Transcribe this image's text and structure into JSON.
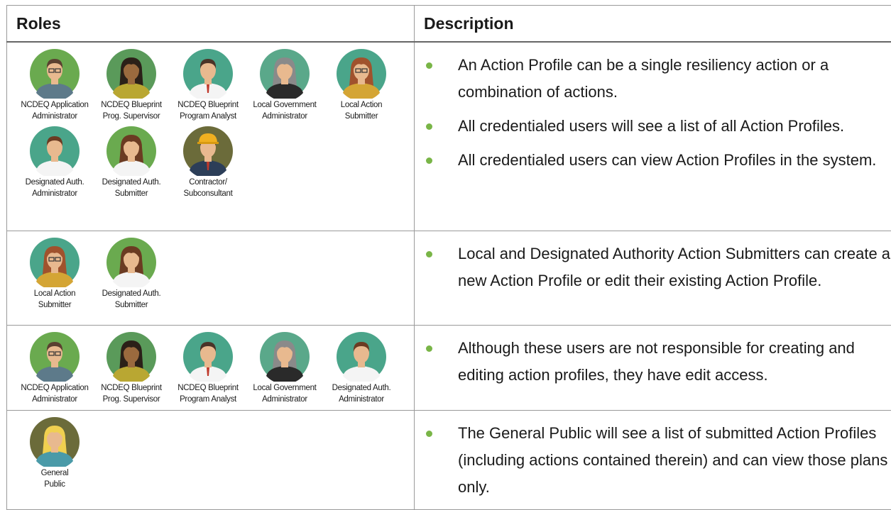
{
  "table": {
    "headers": [
      "Roles",
      "Description"
    ],
    "rows": [
      {
        "roles": [
          [
            "NCDEQ Application",
            "Administrator"
          ],
          [
            "NCDEQ Blueprint",
            "Prog. Supervisor"
          ],
          [
            "NCDEQ Blueprint",
            "Program Analyst"
          ],
          [
            "Local Government",
            "Administrator"
          ],
          [
            "Local Action",
            "Submitter"
          ],
          [
            "Designated Auth.",
            "Administrator"
          ],
          [
            "Designated Auth.",
            "Submitter"
          ],
          [
            "Contractor/",
            "Subconsultant"
          ]
        ],
        "description": [
          "An Action Profile can be a single resiliency action or a combination of actions.",
          "All credentialed users will see a list of all Action Profiles.",
          "All credentialed users can view Action Profiles in the system."
        ]
      },
      {
        "roles": [
          [
            "Local Action",
            "Submitter"
          ],
          [
            "Designated Auth.",
            "Submitter"
          ]
        ],
        "description": [
          "Local and Designated Authority Action Submitters can create a new Action Profile or edit their existing Action Profile."
        ]
      },
      {
        "roles": [
          [
            "NCDEQ Application",
            "Administrator"
          ],
          [
            "NCDEQ Blueprint",
            "Prog. Supervisor"
          ],
          [
            "NCDEQ Blueprint",
            "Program Analyst"
          ],
          [
            "Local Government",
            "Administrator"
          ],
          [
            "Designated Auth.",
            "Administrator"
          ]
        ],
        "description": [
          "Although these users are not responsible for creating and editing action profiles, they have edit access."
        ]
      },
      {
        "roles": [
          [
            "General",
            "Public"
          ]
        ],
        "description": [
          "The General Public will see a list of submitted Action Profiles (including actions contained therein) and can view those plans only."
        ]
      }
    ]
  }
}
